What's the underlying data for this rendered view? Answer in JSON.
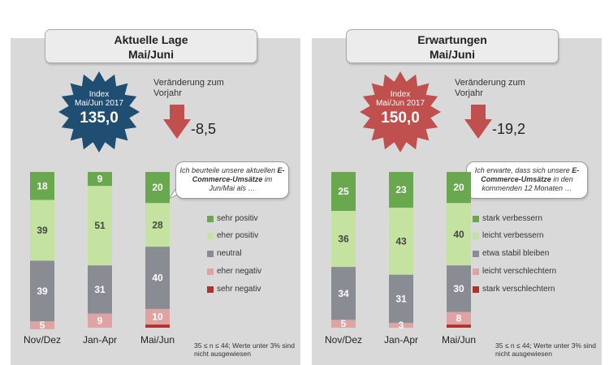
{
  "colors": {
    "sehr_positiv": "#6aa84f",
    "eher_positiv": "#c5e3a0",
    "neutral": "#8a8c94",
    "eher_negativ": "#e0a3a3",
    "sehr_negativ": "#b0322f",
    "star_left": "#1f4e72",
    "star_right": "#c0504d",
    "arrow": "#c0504d"
  },
  "panels": [
    {
      "title_line1": "Aktuelle Lage",
      "title_line2": "Mai/Juni",
      "index_label_line1": "Index",
      "index_label_line2": "Mai/Jun 2017",
      "index_value": "135,0",
      "change_label": "Veränderung zum Vorjahr",
      "change_value": "-8,5",
      "bubble_pre": "Ich beurteile unsere aktuellen ",
      "bubble_bold": "E-Commerce-Umsätze",
      "bubble_post": " im Jun/Mai als …",
      "legend": [
        "sehr positiv",
        "eher positiv",
        "neutral",
        "eher negativ",
        "sehr negativ"
      ],
      "footnote": "35 ≤ n ≤ 44; Werte unter 3% sind nicht ausgewiesen"
    },
    {
      "title_line1": "Erwartungen",
      "title_line2": "Mai/Juni",
      "index_label_line1": "Index",
      "index_label_line2": "Mai/Jun 2017",
      "index_value": "150,0",
      "change_label": "Veränderung zum Vorjahr",
      "change_value": "-19,2",
      "bubble_pre": "Ich erwarte, dass sich unsere ",
      "bubble_bold": "E-Commerce-Umsätze",
      "bubble_post": " in den kommenden 12 Monaten …",
      "legend": [
        "stark verbessern",
        "leicht verbessern",
        "etwa stabil bleiben",
        "leicht verschlechtern",
        "stark verschlechtern"
      ],
      "footnote": "35 ≤ n ≤ 44; Werte unter 3% sind nicht ausgewiesen"
    }
  ],
  "chart_data": [
    {
      "type": "bar",
      "stacked": true,
      "categories": [
        "Nov/Dez",
        "Jan-Apr",
        "Mai/Jun"
      ],
      "series": [
        {
          "name": "sehr positiv",
          "values": [
            18,
            9,
            20
          ],
          "labels": [
            "18",
            "9",
            "20"
          ]
        },
        {
          "name": "eher positiv",
          "values": [
            39,
            51,
            28
          ],
          "labels": [
            "39",
            "51",
            "28"
          ]
        },
        {
          "name": "neutral",
          "values": [
            39,
            31,
            40
          ],
          "labels": [
            "39",
            "31",
            "40"
          ]
        },
        {
          "name": "eher negativ",
          "values": [
            5,
            9,
            10
          ],
          "labels": [
            "5",
            "9",
            "10"
          ]
        },
        {
          "name": "sehr negativ",
          "values": [
            0,
            0,
            2
          ],
          "labels": [
            "",
            "",
            ""
          ]
        }
      ],
      "ylim": [
        0,
        100
      ]
    },
    {
      "type": "bar",
      "stacked": true,
      "categories": [
        "Nov/Dez",
        "Jan-Apr",
        "Mai/Jun"
      ],
      "series": [
        {
          "name": "stark verbessern",
          "values": [
            25,
            23,
            20
          ],
          "labels": [
            "25",
            "23",
            "20"
          ]
        },
        {
          "name": "leicht verbessern",
          "values": [
            36,
            43,
            40
          ],
          "labels": [
            "36",
            "43",
            "40"
          ]
        },
        {
          "name": "etwa stabil bleiben",
          "values": [
            34,
            31,
            30
          ],
          "labels": [
            "34",
            "31",
            "30"
          ]
        },
        {
          "name": "leicht verschlechtern",
          "values": [
            5,
            3,
            8
          ],
          "labels": [
            "5",
            "3",
            "8"
          ]
        },
        {
          "name": "stark verschlechtern",
          "values": [
            0,
            0,
            2
          ],
          "labels": [
            "",
            "",
            ""
          ]
        }
      ],
      "ylim": [
        0,
        100
      ]
    }
  ]
}
